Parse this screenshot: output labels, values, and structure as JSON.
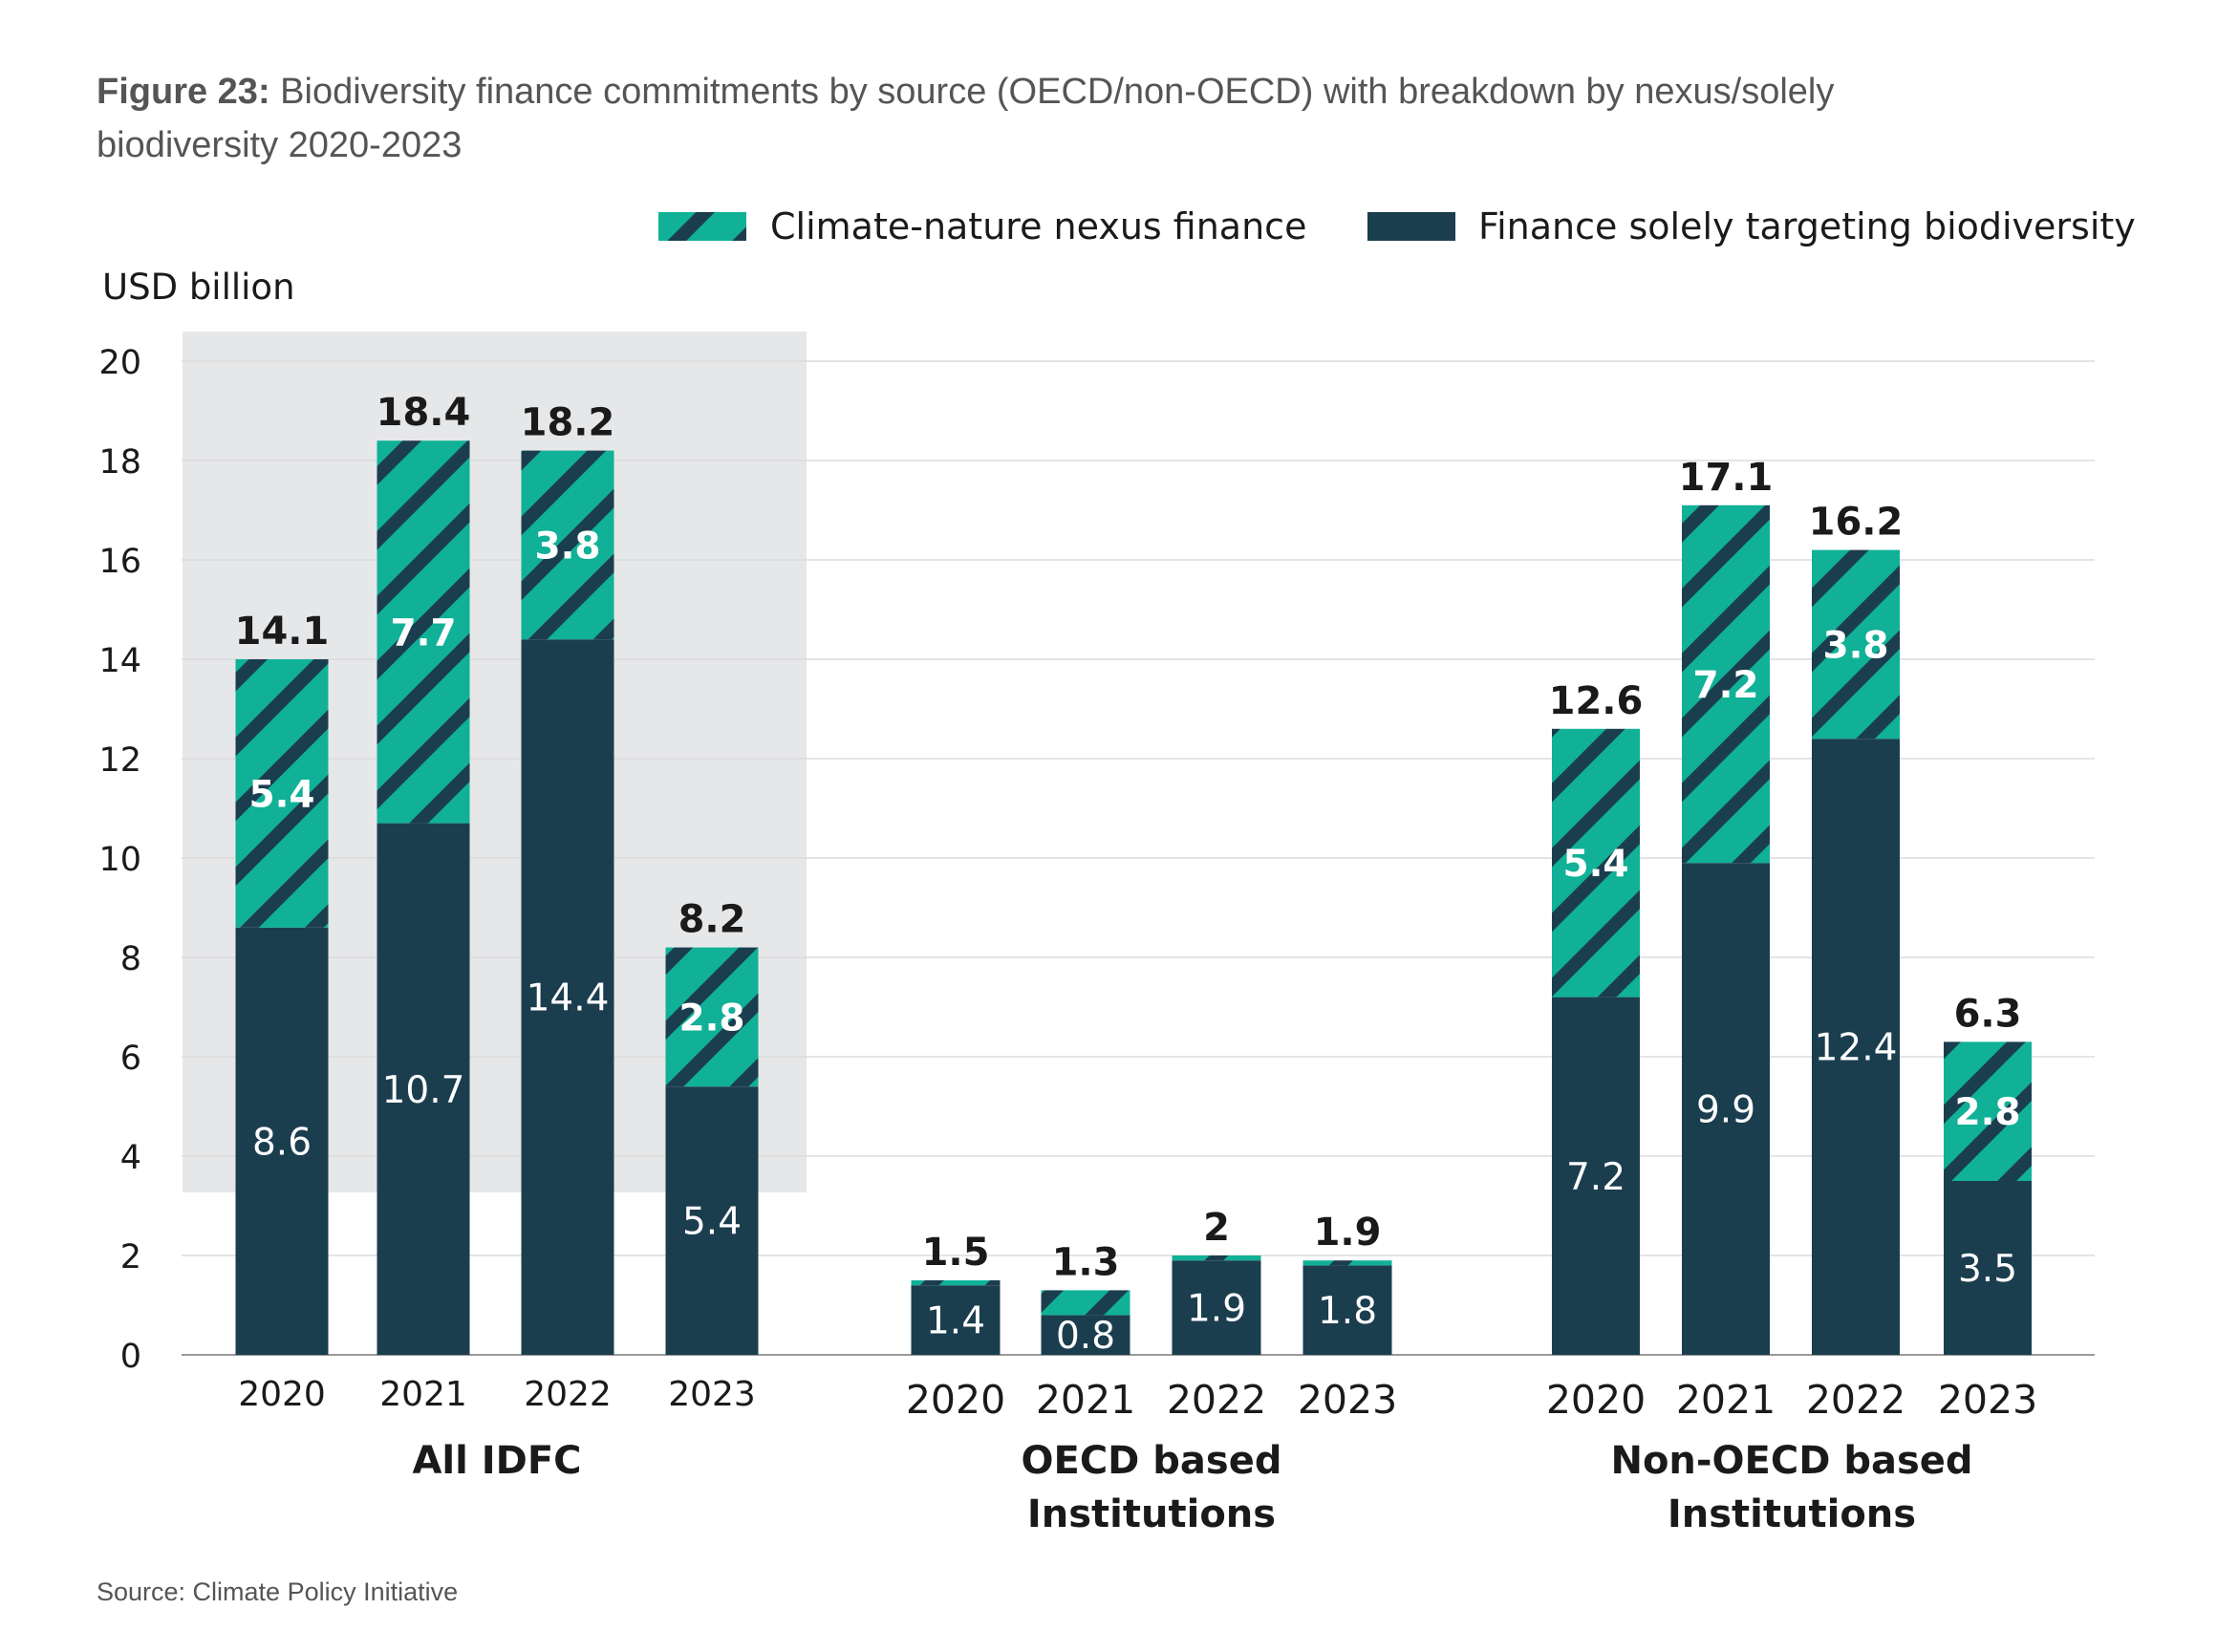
{
  "figure": {
    "label": "Figure 23:",
    "title_line1": "Biodiversity finance commitments by source (OECD/non-OECD) with breakdown by nexus/solely",
    "title_line2": "biodiversity 2020-2023",
    "source": "Source: Climate Policy Initiative"
  },
  "colors": {
    "nexus": "#10b196",
    "stripe": "#1b3e4f",
    "solely": "#1b3e4f",
    "panel_bg": "#e6e7e9",
    "grid": "#dcdcdc",
    "axis": "#9a9a9a",
    "text": "#1a1a1a",
    "title_text": "#555555"
  },
  "chart_data": {
    "type": "bar",
    "stacked": true,
    "ylabel": "USD billion",
    "ylim": [
      0,
      20
    ],
    "yticks": [
      0,
      2,
      4,
      6,
      8,
      10,
      12,
      14,
      16,
      18,
      20
    ],
    "grid": true,
    "legend_position": "top-right",
    "legend": [
      {
        "name": "Climate-nature nexus finance",
        "pattern": "striped"
      },
      {
        "name": "Finance solely targeting biodiversity",
        "pattern": "solid"
      }
    ],
    "groups": [
      {
        "name": "All IDFC",
        "highlighted": true,
        "categories": [
          "2020",
          "2021",
          "2022",
          "2023"
        ],
        "series": [
          {
            "name": "Finance solely targeting biodiversity",
            "values": [
              8.6,
              10.7,
              14.4,
              5.4
            ],
            "labels": [
              "8.6",
              "10.7",
              "14.4",
              "5.4"
            ]
          },
          {
            "name": "Climate-nature nexus finance",
            "values": [
              5.4,
              7.7,
              3.8,
              2.8
            ],
            "labels": [
              "5.4",
              "7.7",
              "3.8",
              "2.8"
            ]
          }
        ],
        "totals": [
          14.1,
          18.4,
          18.2,
          8.2
        ],
        "total_labels": [
          "14.1",
          "18.4",
          "18.2",
          "8.2"
        ]
      },
      {
        "name": "OECD based Institutions",
        "highlighted": false,
        "categories": [
          "2020",
          "2021",
          "2022",
          "2023"
        ],
        "series": [
          {
            "name": "Finance solely targeting biodiversity",
            "values": [
              1.4,
              0.8,
              1.9,
              1.8
            ],
            "labels": [
              "1.4",
              "0.8",
              "1.9",
              "1.8"
            ]
          },
          {
            "name": "Climate-nature nexus finance",
            "values": [
              0.1,
              0.5,
              0.1,
              0.1
            ],
            "labels": [
              "",
              "",
              "",
              ""
            ]
          }
        ],
        "totals": [
          1.5,
          1.3,
          2,
          1.9
        ],
        "total_labels": [
          "1.5",
          "1.3",
          "2",
          "1.9"
        ]
      },
      {
        "name": "Non-OECD based Institutions",
        "highlighted": false,
        "categories": [
          "2020",
          "2021",
          "2022",
          "2023"
        ],
        "series": [
          {
            "name": "Finance solely targeting biodiversity",
            "values": [
              7.2,
              9.9,
              12.4,
              3.5
            ],
            "labels": [
              "7.2",
              "9.9",
              "12.4",
              "3.5"
            ]
          },
          {
            "name": "Climate-nature nexus finance",
            "values": [
              5.4,
              7.2,
              3.8,
              2.8
            ],
            "labels": [
              "5.4",
              "7.2",
              "3.8",
              "2.8"
            ]
          }
        ],
        "totals": [
          12.6,
          17.1,
          16.2,
          6.3
        ],
        "total_labels": [
          "12.6",
          "17.1",
          "16.2",
          "6.3"
        ]
      }
    ]
  }
}
